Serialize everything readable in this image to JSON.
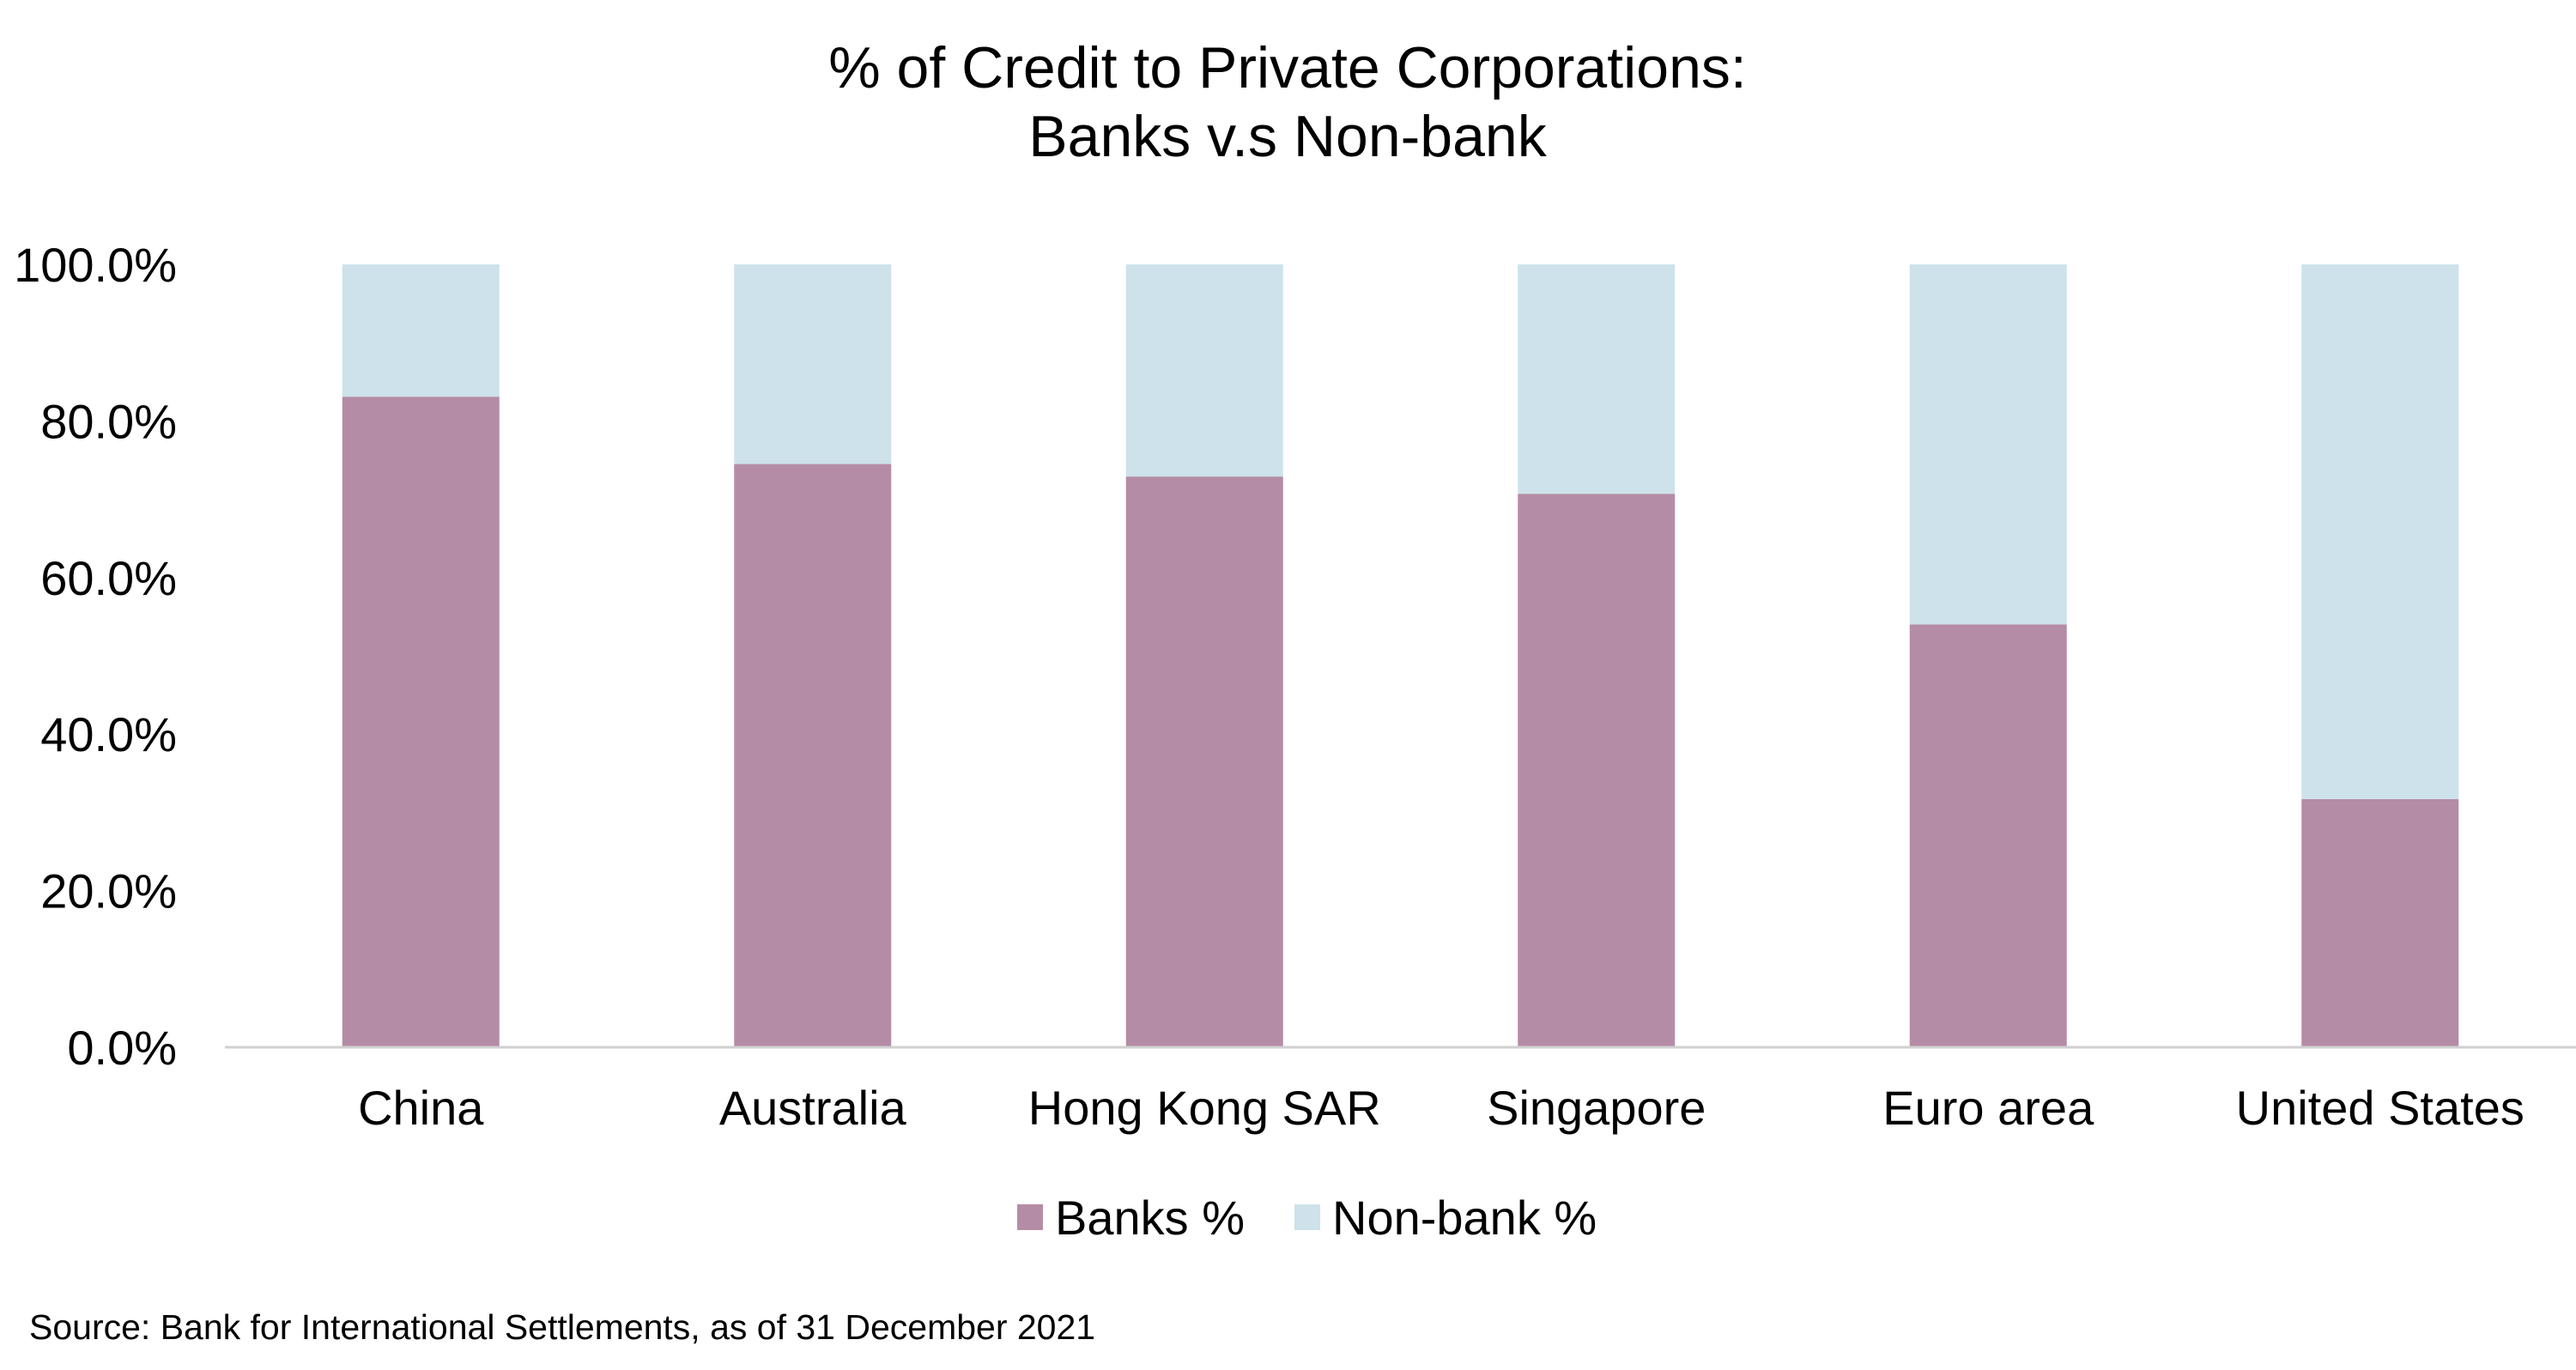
{
  "chart_data": {
    "type": "bar",
    "stacked": true,
    "title_lines": [
      "% of Credit to Private Corporations:",
      "Banks v.s Non-bank"
    ],
    "categories": [
      "China",
      "Australia",
      "Hong Kong SAR",
      "Singapore",
      "Euro area",
      "United States"
    ],
    "series": [
      {
        "name": "Banks %",
        "color": "#b58ca5",
        "values": [
          83.1,
          74.5,
          72.9,
          70.7,
          54.0,
          31.7
        ]
      },
      {
        "name": "Non-bank %",
        "color": "#cde2ea",
        "values": [
          16.9,
          25.5,
          27.1,
          29.3,
          46.0,
          68.3
        ]
      }
    ],
    "ylim": [
      0,
      100
    ],
    "y_ticks": [
      "0.0%",
      "20.0%",
      "40.0%",
      "60.0%",
      "80.0%",
      "100.0%"
    ],
    "y_tick_values": [
      0,
      20,
      40,
      60,
      80,
      100
    ],
    "xlabel": "",
    "ylabel": "",
    "grid": false,
    "legend_position": "bottom",
    "axis_color": "#d0d0d0"
  },
  "source_note": "Source: Bank for International Settlements, as of 31 December 2021"
}
